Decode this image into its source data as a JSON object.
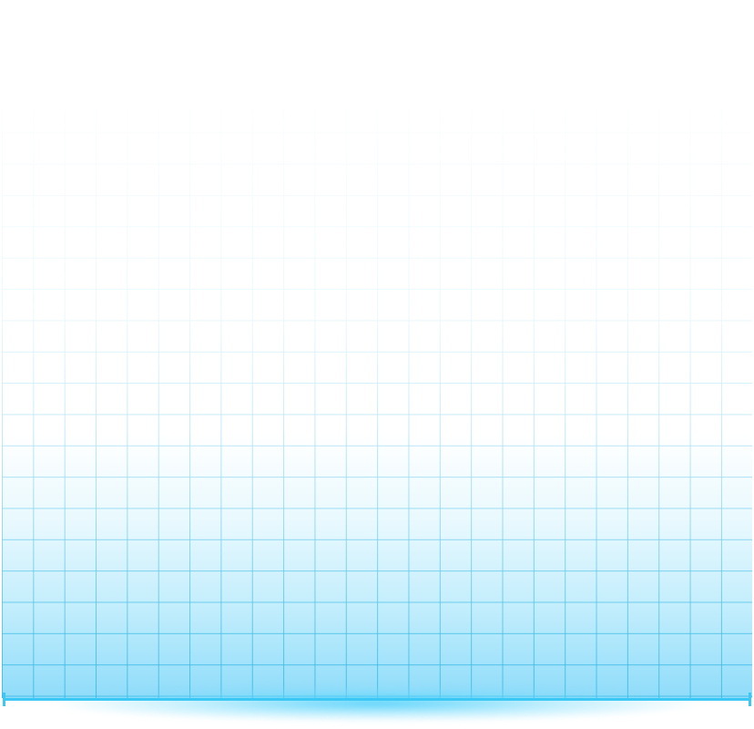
{
  "colors": {
    "grid_line": "#28b4e1",
    "fill_bottom": "#8fdcfa",
    "baseline": "#3cc8f5",
    "background": "#ffffff"
  },
  "elements": {
    "grid": "fading-blue-grid",
    "baseline": "horizontal-baseline-with-end-ticks"
  }
}
